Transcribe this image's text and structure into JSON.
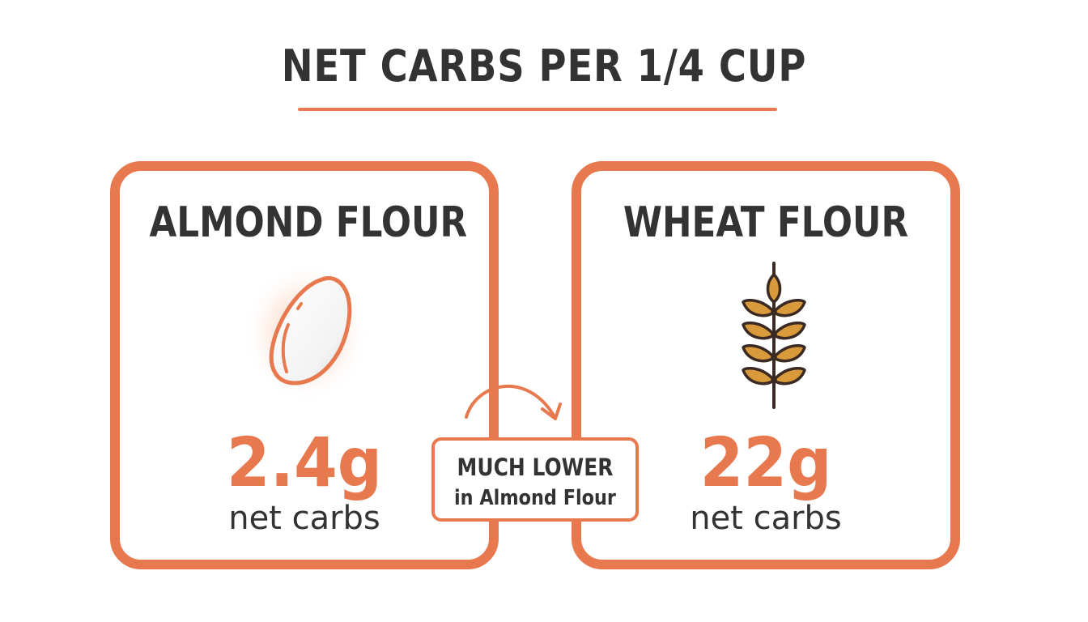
{
  "title": "NET CARBS PER 1/4 CUP",
  "colors": {
    "accent": "#e8794f",
    "text": "#333333",
    "wheat_fill": "#d99a3c"
  },
  "cards": [
    {
      "name": "ALMOND FLOUR",
      "icon": "almond-icon",
      "value": "2.4g",
      "unit": "net carbs"
    },
    {
      "name": "WHEAT FLOUR",
      "icon": "wheat-icon",
      "value": "22g",
      "unit": "net carbs"
    }
  ],
  "callout": {
    "line1": "MUCH LOWER",
    "line2": "in Almond Flour",
    "icon": "curved-arrow-icon"
  }
}
